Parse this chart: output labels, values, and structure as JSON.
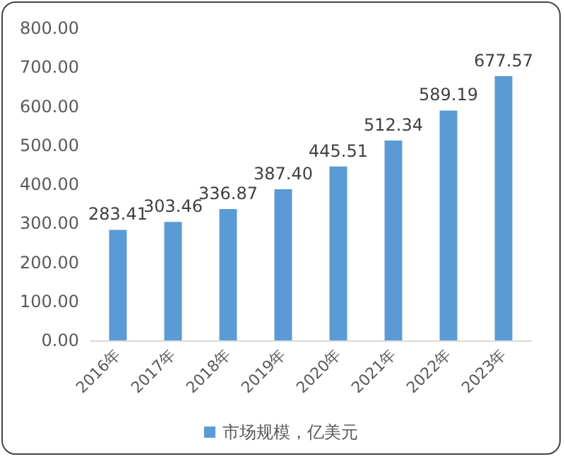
{
  "chart_data": {
    "type": "bar",
    "categories": [
      "2016年",
      "2017年",
      "2018年",
      "2019年",
      "2020年",
      "2021年",
      "2022年",
      "2023年"
    ],
    "series": [
      {
        "name": "市场规模，亿美元",
        "color": "#5b9bd5",
        "values": [
          283.41,
          303.46,
          336.87,
          387.4,
          445.51,
          512.34,
          589.19,
          677.57
        ],
        "value_labels": [
          "283.41",
          "303.46",
          "336.87",
          "387.40",
          "445.51",
          "512.34",
          "589.19",
          "677.57"
        ]
      }
    ],
    "ylim": [
      0,
      800
    ],
    "yticks": [
      {
        "value": 0,
        "label": "0.00"
      },
      {
        "value": 100,
        "label": "100.00"
      },
      {
        "value": 200,
        "label": "200.00"
      },
      {
        "value": 300,
        "label": "300.00"
      },
      {
        "value": 400,
        "label": "400.00"
      },
      {
        "value": 500,
        "label": "500.00"
      },
      {
        "value": 600,
        "label": "600.00"
      },
      {
        "value": 700,
        "label": "700.00"
      },
      {
        "value": 800,
        "label": "800.00"
      }
    ],
    "grid": false,
    "legend": "bottom"
  }
}
